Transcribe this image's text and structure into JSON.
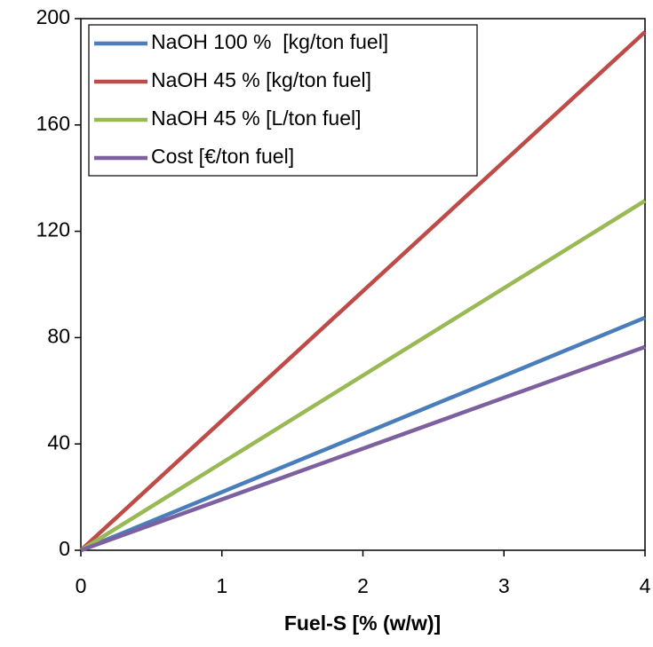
{
  "chart_data": {
    "type": "line",
    "x_label": "Fuel-S [% (w/w)]",
    "x": [
      0,
      4
    ],
    "series": [
      {
        "name": "NaOH 100 %  [kg/ton fuel]",
        "color": "#4a7ebb",
        "values": [
          0,
          87.5
        ]
      },
      {
        "name": "NaOH 45 % [kg/ton fuel]",
        "color": "#be4b48",
        "values": [
          0,
          195
        ]
      },
      {
        "name": "NaOH 45 % [L/ton fuel]",
        "color": "#98b954",
        "values": [
          0,
          131.5
        ]
      },
      {
        "name": "Cost [€/ton fuel]",
        "color": "#7d60a0",
        "values": [
          0,
          76.5
        ]
      }
    ],
    "xlim": [
      0,
      4
    ],
    "xticks": [
      0,
      1,
      2,
      3,
      4
    ],
    "ylim": [
      0,
      200
    ],
    "yticks": [
      0,
      40,
      80,
      120,
      160,
      200
    ],
    "legend": "upper-left"
  }
}
